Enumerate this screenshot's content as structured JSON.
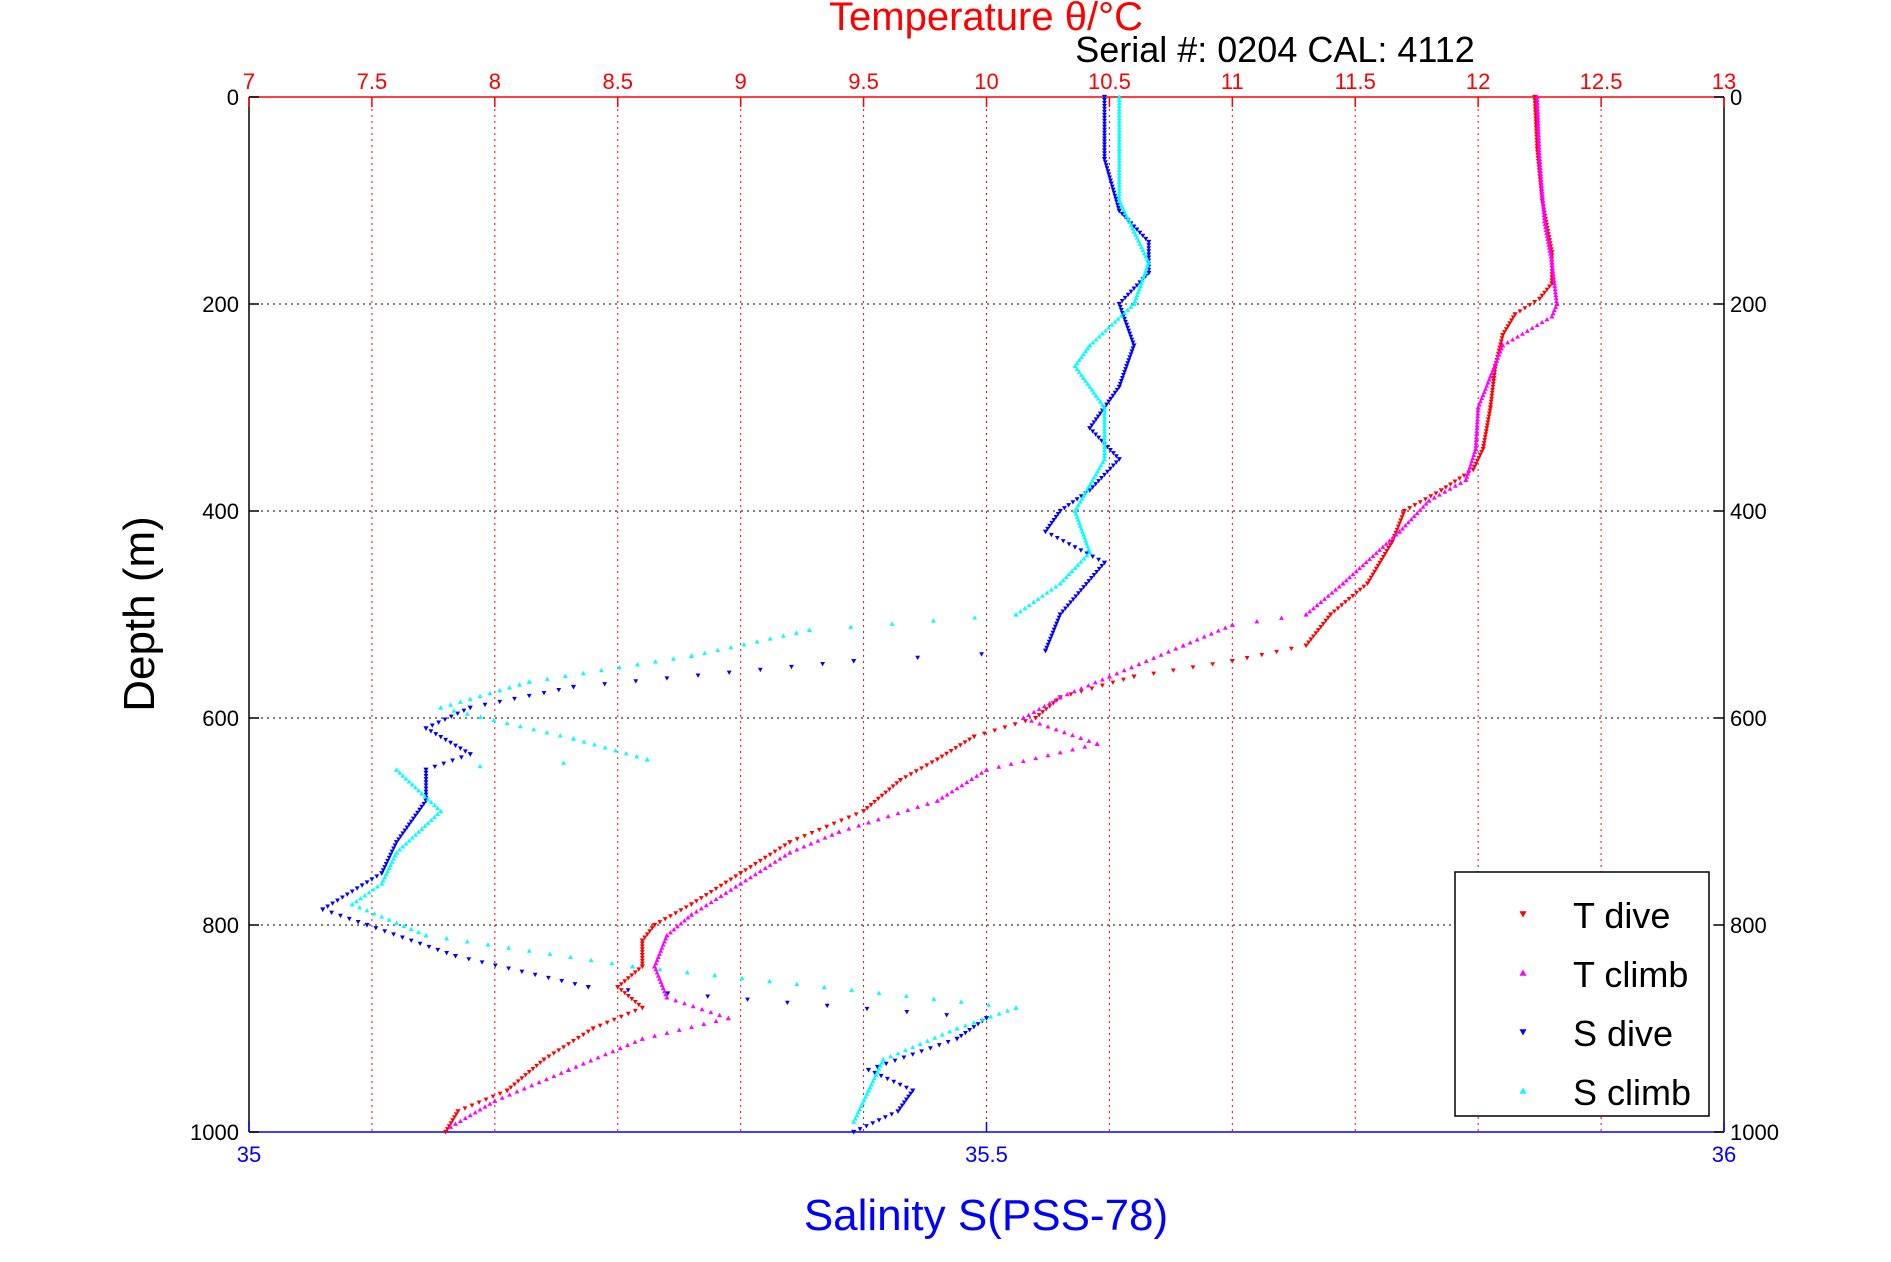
{
  "chart_data": {
    "type": "scatter",
    "title": "Temperature θ/°C",
    "subtitle": "Serial #: 0204  CAL: 4112",
    "ylabel": "Depth (m)",
    "xlabel_bottom": "Salinity S(PSS-78)",
    "xlabel_top": "Temperature θ/°C",
    "grid": true,
    "legend_position": "bottom-right",
    "y_axis": {
      "ylim": [
        0,
        1000
      ],
      "reversed": true,
      "ticks": [
        0,
        200,
        400,
        600,
        800,
        1000
      ],
      "tick_labels": [
        "0",
        "200",
        "400",
        "600",
        "800",
        "1000"
      ]
    },
    "x_axis_top": {
      "xlim": [
        7,
        13
      ],
      "ticks": [
        7,
        7.5,
        8,
        8.5,
        9,
        9.5,
        10,
        10.5,
        11,
        11.5,
        12,
        12.5,
        13
      ],
      "tick_labels": [
        "7",
        "7.5",
        "8",
        "8.5",
        "9",
        "9.5",
        "10",
        "10.5",
        "11",
        "11.5",
        "12",
        "12.5",
        "13"
      ],
      "color": "#ff0000"
    },
    "x_axis_bottom": {
      "xlim": [
        35,
        36
      ],
      "ticks": [
        35,
        35.5,
        36
      ],
      "tick_labels": [
        "35",
        "35.5",
        "36"
      ],
      "color": "#0000ff"
    },
    "series": [
      {
        "name": "T dive",
        "axis": "top",
        "color": "#ff0000",
        "marker": "triangle-down",
        "points": [
          [
            0,
            12.23
          ],
          [
            50,
            12.24
          ],
          [
            100,
            12.26
          ],
          [
            150,
            12.3
          ],
          [
            180,
            12.3
          ],
          [
            195,
            12.25
          ],
          [
            210,
            12.15
          ],
          [
            230,
            12.1
          ],
          [
            260,
            12.07
          ],
          [
            300,
            12.05
          ],
          [
            340,
            12.02
          ],
          [
            360,
            11.98
          ],
          [
            380,
            11.85
          ],
          [
            400,
            11.7
          ],
          [
            430,
            11.65
          ],
          [
            470,
            11.55
          ],
          [
            500,
            11.4
          ],
          [
            530,
            11.3
          ],
          [
            545,
            11.0
          ],
          [
            560,
            10.6
          ],
          [
            580,
            10.3
          ],
          [
            600,
            10.2
          ],
          [
            618,
            9.95
          ],
          [
            640,
            9.8
          ],
          [
            660,
            9.65
          ],
          [
            690,
            9.5
          ],
          [
            720,
            9.2
          ],
          [
            750,
            9.0
          ],
          [
            780,
            8.8
          ],
          [
            800,
            8.65
          ],
          [
            815,
            8.6
          ],
          [
            840,
            8.6
          ],
          [
            860,
            8.5
          ],
          [
            880,
            8.6
          ],
          [
            900,
            8.4
          ],
          [
            930,
            8.2
          ],
          [
            960,
            8.05
          ],
          [
            980,
            7.85
          ],
          [
            1000,
            7.8
          ]
        ]
      },
      {
        "name": "T climb",
        "axis": "top",
        "color": "#ff00ff",
        "marker": "triangle-up",
        "points": [
          [
            0,
            12.24
          ],
          [
            60,
            12.25
          ],
          [
            120,
            12.27
          ],
          [
            160,
            12.3
          ],
          [
            200,
            12.32
          ],
          [
            212,
            12.3
          ],
          [
            240,
            12.1
          ],
          [
            270,
            12.05
          ],
          [
            300,
            12.0
          ],
          [
            340,
            11.99
          ],
          [
            370,
            11.95
          ],
          [
            390,
            11.8
          ],
          [
            420,
            11.68
          ],
          [
            470,
            11.45
          ],
          [
            500,
            11.3
          ],
          [
            510,
            11.0
          ],
          [
            530,
            10.8
          ],
          [
            560,
            10.5
          ],
          [
            580,
            10.3
          ],
          [
            600,
            10.15
          ],
          [
            625,
            10.45
          ],
          [
            650,
            10.0
          ],
          [
            680,
            9.8
          ],
          [
            710,
            9.4
          ],
          [
            730,
            9.2
          ],
          [
            760,
            9.0
          ],
          [
            790,
            8.8
          ],
          [
            810,
            8.7
          ],
          [
            840,
            8.65
          ],
          [
            870,
            8.7
          ],
          [
            890,
            8.95
          ],
          [
            910,
            8.6
          ],
          [
            940,
            8.3
          ],
          [
            970,
            8.0
          ],
          [
            995,
            7.82
          ]
        ]
      },
      {
        "name": "S dive",
        "axis": "bottom",
        "color": "#0000ff",
        "marker": "triangle-down",
        "points": [
          [
            0,
            35.58
          ],
          [
            60,
            35.58
          ],
          [
            110,
            35.59
          ],
          [
            140,
            35.61
          ],
          [
            170,
            35.61
          ],
          [
            200,
            35.59
          ],
          [
            240,
            35.6
          ],
          [
            280,
            35.59
          ],
          [
            320,
            35.57
          ],
          [
            350,
            35.59
          ],
          [
            380,
            35.57
          ],
          [
            400,
            35.55
          ],
          [
            420,
            35.54
          ],
          [
            450,
            35.58
          ],
          [
            500,
            35.55
          ],
          [
            535,
            35.54
          ],
          [
            545,
            35.41
          ],
          [
            570,
            35.22
          ],
          [
            590,
            35.15
          ],
          [
            610,
            35.12
          ],
          [
            635,
            35.15
          ],
          [
            650,
            35.12
          ],
          [
            680,
            35.12
          ],
          [
            720,
            35.1
          ],
          [
            750,
            35.09
          ],
          [
            785,
            35.05
          ],
          [
            800,
            35.08
          ],
          [
            830,
            35.14
          ],
          [
            860,
            35.23
          ],
          [
            890,
            35.5
          ],
          [
            910,
            35.48
          ],
          [
            940,
            35.42
          ],
          [
            960,
            35.45
          ],
          [
            980,
            35.44
          ],
          [
            1000,
            35.41
          ]
        ]
      },
      {
        "name": "S climb",
        "axis": "bottom",
        "color": "#00ffff",
        "marker": "triangle-up",
        "points": [
          [
            0,
            35.59
          ],
          [
            50,
            35.59
          ],
          [
            100,
            35.59
          ],
          [
            130,
            35.6
          ],
          [
            160,
            35.61
          ],
          [
            200,
            35.6
          ],
          [
            240,
            35.57
          ],
          [
            260,
            35.56
          ],
          [
            300,
            35.58
          ],
          [
            350,
            35.58
          ],
          [
            400,
            35.56
          ],
          [
            440,
            35.57
          ],
          [
            470,
            35.55
          ],
          [
            500,
            35.52
          ],
          [
            515,
            35.38
          ],
          [
            540,
            35.3
          ],
          [
            565,
            35.19
          ],
          [
            590,
            35.13
          ],
          [
            620,
            35.22
          ],
          [
            640,
            35.27
          ],
          [
            650,
            35.1
          ],
          [
            690,
            35.13
          ],
          [
            730,
            35.1
          ],
          [
            760,
            35.09
          ],
          [
            780,
            35.07
          ],
          [
            810,
            35.12
          ],
          [
            840,
            35.26
          ],
          [
            880,
            35.52
          ],
          [
            900,
            35.48
          ],
          [
            930,
            35.43
          ],
          [
            960,
            35.42
          ],
          [
            990,
            35.41
          ]
        ]
      }
    ]
  }
}
